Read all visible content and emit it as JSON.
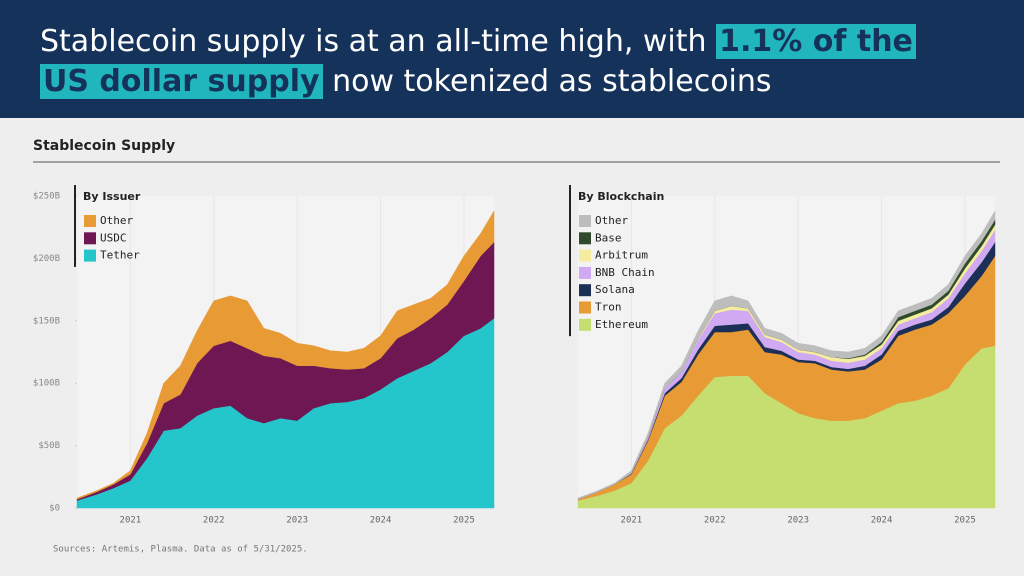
{
  "header": {
    "title": [
      "Stablecoin supply is at an all-time high, with ",
      "1.1% of the",
      "US dollar supply",
      " now tokenized as stablecoins"
    ]
  },
  "section_title": "Stablecoin Supply",
  "source": "Sources: Artemis, Plasma. Data as of 5/31/2025.",
  "chart_data": [
    {
      "type": "area",
      "stacked": true,
      "title": "By Issuer",
      "x": [
        2020.36,
        2020.6,
        2020.8,
        2021.0,
        2021.2,
        2021.4,
        2021.6,
        2021.8,
        2022.0,
        2022.2,
        2022.4,
        2022.6,
        2022.8,
        2023.0,
        2023.2,
        2023.4,
        2023.6,
        2023.8,
        2024.0,
        2024.2,
        2024.4,
        2024.6,
        2024.8,
        2025.0,
        2025.2,
        2025.36
      ],
      "series": [
        {
          "name": "Other",
          "color": "#e89a35",
          "values": [
            1,
            1,
            1,
            3,
            8,
            16,
            23,
            26,
            36,
            36,
            38,
            22,
            20,
            18,
            16,
            14,
            14,
            16,
            18,
            22,
            20,
            16,
            16,
            20,
            18,
            25
          ]
        },
        {
          "name": "USDC",
          "color": "#6e1752",
          "values": [
            1,
            2,
            3,
            5,
            12,
            22,
            27,
            42,
            50,
            52,
            56,
            54,
            48,
            44,
            34,
            28,
            26,
            24,
            25,
            32,
            33,
            36,
            38,
            44,
            58,
            61
          ]
        },
        {
          "name": "Tether",
          "color": "#25c5cc",
          "values": [
            6,
            11,
            16,
            22,
            40,
            62,
            64,
            74,
            80,
            82,
            72,
            68,
            72,
            70,
            80,
            84,
            85,
            88,
            95,
            104,
            110,
            116,
            125,
            138,
            144,
            152
          ]
        }
      ],
      "xlim": [
        2020.36,
        2025.36
      ],
      "xticks": [
        2021,
        2022,
        2023,
        2024,
        2025
      ],
      "ylim": [
        0,
        250
      ],
      "yticks": [
        {
          "value": 0,
          "label": "$0"
        },
        {
          "value": 50,
          "label": "$50B"
        },
        {
          "value": 100,
          "label": "$100B"
        },
        {
          "value": 150,
          "label": "$150B"
        },
        {
          "value": 200,
          "label": "$200B"
        },
        {
          "value": 250,
          "label": "$250B"
        }
      ]
    },
    {
      "type": "area",
      "stacked": true,
      "title": "By Blockchain",
      "x": [
        2020.36,
        2020.6,
        2020.8,
        2021.0,
        2021.2,
        2021.4,
        2021.6,
        2021.8,
        2022.0,
        2022.2,
        2022.4,
        2022.6,
        2022.8,
        2023.0,
        2023.2,
        2023.4,
        2023.6,
        2023.8,
        2024.0,
        2024.2,
        2024.4,
        2024.6,
        2024.8,
        2025.0,
        2025.2,
        2025.36
      ],
      "series": [
        {
          "name": "Other",
          "color": "#bdbdbd",
          "values": [
            1,
            1,
            1,
            2,
            3,
            4,
            5,
            6,
            8,
            8,
            6,
            5,
            5,
            5,
            5,
            5,
            5,
            5,
            5,
            5,
            5,
            5,
            5,
            6,
            6,
            7
          ]
        },
        {
          "name": "Base",
          "color": "#2f4b2b",
          "values": [
            0,
            0,
            0,
            0,
            0,
            0,
            0,
            0,
            0,
            0,
            0,
            0,
            0,
            0,
            0,
            0,
            0.5,
            1,
            2,
            3,
            3,
            3,
            3,
            4,
            4,
            4
          ]
        },
        {
          "name": "Arbitrum",
          "color": "#f6ec9f",
          "values": [
            0,
            0,
            0,
            0,
            0,
            0,
            0,
            1,
            2,
            3,
            2,
            2,
            2,
            2,
            2,
            3,
            3,
            3,
            3,
            3,
            3,
            3,
            3,
            4,
            4,
            4
          ]
        },
        {
          "name": "BNB Chain",
          "color": "#cfa9f1",
          "values": [
            0,
            0,
            0,
            0.5,
            2,
            4,
            5,
            8,
            10,
            12,
            10,
            8,
            7,
            6,
            5,
            5,
            5,
            5,
            5,
            5,
            5,
            6,
            7,
            8,
            9,
            10
          ]
        },
        {
          "name": "Solana",
          "color": "#1c2f56",
          "values": [
            0,
            0,
            0,
            0.5,
            1,
            2,
            3,
            4,
            5,
            6,
            5,
            4,
            3,
            2,
            2,
            2,
            2,
            3,
            4,
            4,
            4,
            4,
            5,
            10,
            11,
            11
          ]
        },
        {
          "name": "Tron",
          "color": "#e89a35",
          "values": [
            1,
            3,
            5,
            7,
            16,
            26,
            27,
            33,
            36,
            35,
            37,
            33,
            39,
            41,
            44,
            41,
            39.5,
            39,
            41,
            54,
            57,
            57,
            60,
            55,
            58,
            72
          ]
        },
        {
          "name": "Ethereum",
          "color": "#c6de6f",
          "values": [
            6,
            10,
            14,
            20,
            38,
            64,
            74,
            90,
            105,
            106,
            106,
            92,
            84,
            76,
            72,
            70,
            70,
            72,
            78,
            84,
            86,
            90,
            96,
            115,
            128,
            130
          ]
        }
      ],
      "xlim": [
        2020.36,
        2025.36
      ],
      "xticks": [
        2021,
        2022,
        2023,
        2024,
        2025
      ],
      "ylim": [
        0,
        250
      ]
    }
  ]
}
